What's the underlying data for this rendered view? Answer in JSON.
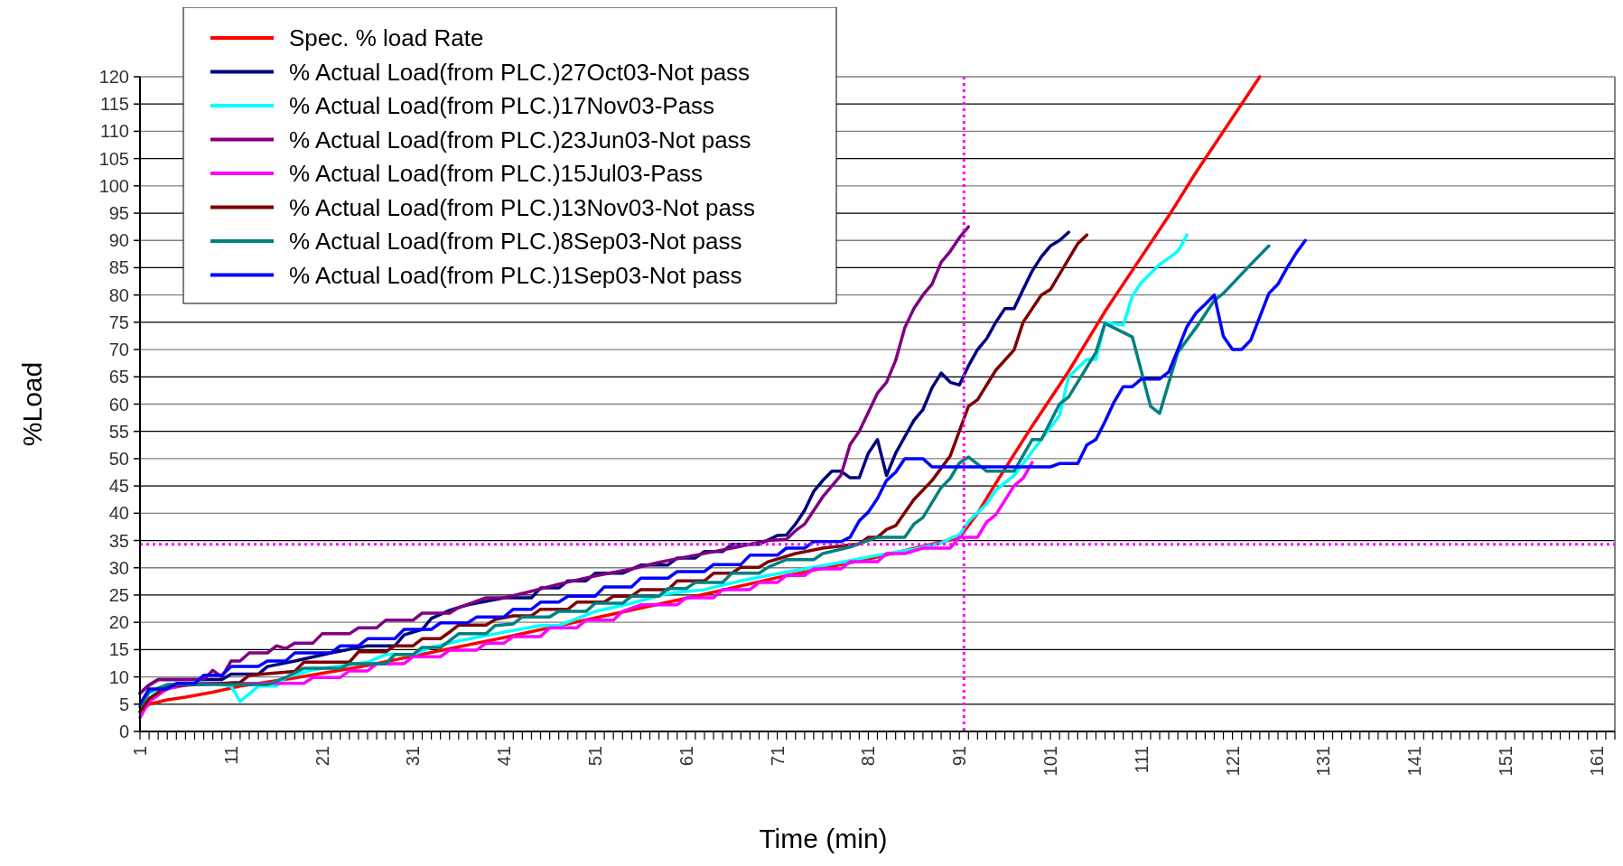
{
  "chart_data": {
    "type": "line",
    "xlabel": "Time (min)",
    "ylabel": "%Load",
    "legend": "top left",
    "grid": "y",
    "line_style": "solid",
    "xlim": [
      1,
      163
    ],
    "ylim": [
      0,
      120
    ],
    "yticks": [
      0,
      5,
      10,
      15,
      20,
      25,
      30,
      35,
      40,
      45,
      50,
      55,
      60,
      65,
      70,
      75,
      80,
      85,
      90,
      95,
      100,
      105,
      110,
      115,
      120
    ],
    "xticks": [
      1,
      {
        "value": 2,
        "label": null
      },
      {
        "value": 3,
        "label": null
      },
      {
        "value": 4,
        "label": null
      },
      {
        "value": 5,
        "label": null
      },
      {
        "value": 6,
        "label": null
      },
      {
        "value": 7,
        "label": null
      },
      {
        "value": 8,
        "label": null
      },
      {
        "value": 9,
        "label": null
      },
      {
        "value": 10,
        "label": null
      },
      11,
      {
        "value": 12,
        "label": null
      },
      {
        "value": 13,
        "label": null
      },
      {
        "value": 14,
        "label": null
      },
      {
        "value": 15,
        "label": null
      },
      {
        "value": 16,
        "label": null
      },
      {
        "value": 17,
        "label": null
      },
      {
        "value": 18,
        "label": null
      },
      {
        "value": 19,
        "label": null
      },
      {
        "value": 20,
        "label": null
      },
      21,
      {
        "value": 22,
        "label": null
      },
      {
        "value": 23,
        "label": null
      },
      {
        "value": 24,
        "label": null
      },
      {
        "value": 25,
        "label": null
      },
      {
        "value": 26,
        "label": null
      },
      {
        "value": 27,
        "label": null
      },
      {
        "value": 28,
        "label": null
      },
      {
        "value": 29,
        "label": null
      },
      {
        "value": 30,
        "label": null
      },
      31,
      {
        "value": 32,
        "label": null
      },
      {
        "value": 33,
        "label": null
      },
      {
        "value": 34,
        "label": null
      },
      {
        "value": 35,
        "label": null
      },
      {
        "value": 36,
        "label": null
      },
      {
        "value": 37,
        "label": null
      },
      {
        "value": 38,
        "label": null
      },
      {
        "value": 39,
        "label": null
      },
      {
        "value": 40,
        "label": null
      },
      41,
      {
        "value": 42,
        "label": null
      },
      {
        "value": 43,
        "label": null
      },
      {
        "value": 44,
        "label": null
      },
      {
        "value": 45,
        "label": null
      },
      {
        "value": 46,
        "label": null
      },
      {
        "value": 47,
        "label": null
      },
      {
        "value": 48,
        "label": null
      },
      {
        "value": 49,
        "label": null
      },
      {
        "value": 50,
        "label": null
      },
      51,
      {
        "value": 52,
        "label": null
      },
      {
        "value": 53,
        "label": null
      },
      {
        "value": 54,
        "label": null
      },
      {
        "value": 55,
        "label": null
      },
      {
        "value": 56,
        "label": null
      },
      {
        "value": 57,
        "label": null
      },
      {
        "value": 58,
        "label": null
      },
      {
        "value": 59,
        "label": null
      },
      {
        "value": 60,
        "label": null
      },
      61,
      {
        "value": 62,
        "label": null
      },
      {
        "value": 63,
        "label": null
      },
      {
        "value": 64,
        "label": null
      },
      {
        "value": 65,
        "label": null
      },
      {
        "value": 66,
        "label": null
      },
      {
        "value": 67,
        "label": null
      },
      {
        "value": 68,
        "label": null
      },
      {
        "value": 69,
        "label": null
      },
      {
        "value": 70,
        "label": null
      },
      71,
      {
        "value": 72,
        "label": null
      },
      {
        "value": 73,
        "label": null
      },
      {
        "value": 74,
        "label": null
      },
      {
        "value": 75,
        "label": null
      },
      {
        "value": 76,
        "label": null
      },
      {
        "value": 77,
        "label": null
      },
      {
        "value": 78,
        "label": null
      },
      {
        "value": 79,
        "label": null
      },
      {
        "value": 80,
        "label": null
      },
      81,
      {
        "value": 82,
        "label": null
      },
      {
        "value": 83,
        "label": null
      },
      {
        "value": 84,
        "label": null
      },
      {
        "value": 85,
        "label": null
      },
      {
        "value": 86,
        "label": null
      },
      {
        "value": 87,
        "label": null
      },
      {
        "value": 88,
        "label": null
      },
      {
        "value": 89,
        "label": null
      },
      {
        "value": 90,
        "label": null
      },
      91,
      {
        "value": 92,
        "label": null
      },
      {
        "value": 93,
        "label": null
      },
      {
        "value": 94,
        "label": null
      },
      {
        "value": 95,
        "label": null
      },
      {
        "value": 96,
        "label": null
      },
      {
        "value": 97,
        "label": null
      },
      {
        "value": 98,
        "label": null
      },
      {
        "value": 99,
        "label": null
      },
      {
        "value": 100,
        "label": null
      },
      101,
      {
        "value": 102,
        "label": null
      },
      {
        "value": 103,
        "label": null
      },
      {
        "value": 104,
        "label": null
      },
      {
        "value": 105,
        "label": null
      },
      {
        "value": 106,
        "label": null
      },
      {
        "value": 107,
        "label": null
      },
      {
        "value": 108,
        "label": null
      },
      {
        "value": 109,
        "label": null
      },
      {
        "value": 110,
        "label": null
      },
      111,
      {
        "value": 112,
        "label": null
      },
      {
        "value": 113,
        "label": null
      },
      {
        "value": 114,
        "label": null
      },
      {
        "value": 115,
        "label": null
      },
      {
        "value": 116,
        "label": null
      },
      {
        "value": 117,
        "label": null
      },
      {
        "value": 118,
        "label": null
      },
      {
        "value": 119,
        "label": null
      },
      {
        "value": 120,
        "label": null
      },
      121,
      {
        "value": 122,
        "label": null
      },
      {
        "value": 123,
        "label": null
      },
      {
        "value": 124,
        "label": null
      },
      {
        "value": 125,
        "label": null
      },
      {
        "value": 126,
        "label": null
      },
      {
        "value": 127,
        "label": null
      },
      {
        "value": 128,
        "label": null
      },
      {
        "value": 129,
        "label": null
      },
      {
        "value": 130,
        "label": null
      },
      131,
      {
        "value": 132,
        "label": null
      },
      {
        "value": 133,
        "label": null
      },
      {
        "value": 134,
        "label": null
      },
      {
        "value": 135,
        "label": null
      },
      {
        "value": 136,
        "label": null
      },
      {
        "value": 137,
        "label": null
      },
      {
        "value": 138,
        "label": null
      },
      {
        "value": 139,
        "label": null
      },
      {
        "value": 140,
        "label": null
      },
      141,
      {
        "value": 142,
        "label": null
      },
      {
        "value": 143,
        "label": null
      },
      {
        "value": 144,
        "label": null
      },
      {
        "value": 145,
        "label": null
      },
      {
        "value": 146,
        "label": null
      },
      {
        "value": 147,
        "label": null
      },
      {
        "value": 148,
        "label": null
      },
      {
        "value": 149,
        "label": null
      },
      {
        "value": 150,
        "label": null
      },
      151,
      {
        "value": 152,
        "label": null
      },
      {
        "value": 153,
        "label": null
      },
      {
        "value": 154,
        "label": null
      },
      {
        "value": 155,
        "label": null
      },
      {
        "value": 156,
        "label": null
      },
      {
        "value": 157,
        "label": null
      },
      {
        "value": 158,
        "label": null
      },
      {
        "value": 159,
        "label": null
      },
      {
        "value": 160,
        "label": null
      },
      161,
      {
        "value": 162,
        "label": null
      },
      {
        "value": 163,
        "label": null
      }
    ],
    "ref_lines": [
      {
        "axis": "x",
        "value": 91.5,
        "label": null,
        "color": "#ff00ff",
        "line_style": "dotted"
      },
      {
        "axis": "y",
        "value": 34.3,
        "label": null,
        "color": "#ff00ff",
        "line_style": "dotted"
      }
    ],
    "series": [
      {
        "name": "Spec. % load Rate",
        "color": "#ff0000",
        "x": [
          1,
          2,
          4,
          6,
          9,
          12,
          18,
          25,
          31,
          41,
          51,
          61,
          71,
          81,
          91,
          93,
          95,
          99,
          103,
          107,
          111,
          114,
          117,
          120,
          122,
          124
        ],
        "values": [
          3.6,
          5,
          5.8,
          6.3,
          7.2,
          8.3,
          9.8,
          11.8,
          13.8,
          17.2,
          20.8,
          24.4,
          28.2,
          31.6,
          35.5,
          40,
          45.5,
          56,
          66,
          77,
          87,
          94.5,
          102.5,
          110,
          115,
          120
        ]
      },
      {
        "name": "% Actual Load(from PLC.)27Oct03-Not pass",
        "color": "#000080",
        "x": [
          1,
          2,
          3,
          10,
          11,
          14,
          15,
          18,
          22,
          26,
          29,
          30,
          32,
          33,
          35,
          37,
          41,
          44,
          45,
          47,
          48,
          50,
          51,
          54,
          56,
          59,
          60,
          62,
          63,
          65,
          66,
          69,
          71,
          72,
          73,
          74,
          75,
          76,
          77,
          78,
          79,
          80,
          81,
          82,
          83,
          84,
          85,
          86,
          87,
          88,
          89,
          90,
          91,
          92,
          93,
          94,
          95,
          96,
          97,
          98,
          99,
          100,
          101,
          102,
          103
        ],
        "values": [
          7,
          8.5,
          9.5,
          9.5,
          10.5,
          10.5,
          11.9,
          12.9,
          14.4,
          15.7,
          15.7,
          17.7,
          18.7,
          20.7,
          22.2,
          23.2,
          24.5,
          24.5,
          26.3,
          26.3,
          27.6,
          27.6,
          29,
          29,
          30.5,
          30.5,
          31.8,
          31.8,
          33,
          33,
          34.3,
          34.3,
          35.9,
          36,
          38,
          40.5,
          44,
          46,
          47.7,
          47.7,
          46.5,
          46.5,
          51,
          53.5,
          46.9,
          51,
          54,
          57,
          59,
          63,
          65.7,
          64,
          63.5,
          67,
          70,
          72,
          75,
          77.5,
          77.5,
          81,
          84.4,
          87,
          89,
          90,
          91.5
        ]
      },
      {
        "name": "% Actual Load(from PLC.)17Nov03-Pass",
        "color": "#00ffff",
        "x": [
          1,
          2,
          4,
          8,
          11,
          12,
          14,
          16,
          17,
          20,
          23,
          26,
          28,
          31,
          33,
          36,
          40,
          45,
          47,
          51,
          55,
          59,
          63,
          67,
          70,
          74,
          78,
          82,
          86,
          89,
          90,
          91,
          92,
          94,
          95,
          97,
          99,
          102,
          103,
          105,
          106,
          107,
          109,
          110,
          111,
          113,
          115,
          116
        ],
        "values": [
          4.5,
          7,
          8.5,
          9,
          8.3,
          5.5,
          8.3,
          8.3,
          9.9,
          11.3,
          12,
          12.7,
          14.1,
          14.1,
          15.4,
          16.6,
          17.9,
          19.4,
          19.4,
          22,
          23.5,
          25.3,
          26,
          27.6,
          28.6,
          29.8,
          31,
          32.3,
          33.4,
          34.5,
          35.4,
          36,
          38.5,
          41.7,
          44.2,
          46.9,
          51.3,
          57.9,
          65,
          68.2,
          68.2,
          75,
          74.5,
          79.8,
          82.3,
          85.6,
          88,
          91
        ]
      },
      {
        "name": "% Actual Load(from PLC.)23Jun03-Not pass",
        "color": "#800080",
        "x": [
          1,
          2,
          3,
          8,
          9,
          10,
          11,
          12,
          13,
          15,
          16,
          17,
          18,
          20,
          21,
          24,
          25,
          27,
          28,
          31,
          32,
          35,
          36,
          39,
          41,
          44,
          47,
          51,
          55,
          58,
          62,
          66,
          70,
          72,
          73,
          74,
          76,
          78,
          79,
          80,
          82,
          83,
          84,
          85,
          86,
          87,
          88,
          89,
          90,
          91,
          92
        ],
        "values": [
          7,
          8.5,
          9.5,
          9.5,
          11.2,
          10,
          12.9,
          12.9,
          14.4,
          14.4,
          15.7,
          15.2,
          16.2,
          16.2,
          17.9,
          17.9,
          19,
          19,
          20.4,
          20.4,
          21.7,
          21.7,
          22.7,
          24.5,
          24.5,
          25.7,
          27,
          28.5,
          29.8,
          31,
          32.3,
          33.6,
          35,
          35.2,
          36.8,
          38,
          43,
          47,
          52.6,
          55,
          62,
          64,
          68,
          74,
          77.5,
          80,
          82,
          86,
          88,
          90.5,
          92.5
        ]
      },
      {
        "name": "% Actual Load(from PLC.)15Jul03-Pass",
        "color": "#ff00ff",
        "x": [
          1,
          2,
          4,
          7,
          19,
          20,
          23,
          24,
          26,
          27,
          30,
          31,
          34,
          35,
          38,
          39,
          41,
          42,
          45,
          46,
          49,
          50,
          53,
          54,
          56,
          60,
          61,
          64,
          65,
          68,
          69,
          71,
          72,
          74,
          75,
          78,
          79,
          82,
          83,
          85,
          87,
          90,
          91,
          93,
          94,
          95,
          97,
          98,
          99
        ],
        "values": [
          2.5,
          5.5,
          7.8,
          8.8,
          8.8,
          9.9,
          9.9,
          11.1,
          11.1,
          12.4,
          12.4,
          13.7,
          13.7,
          14.9,
          14.9,
          16.2,
          16.2,
          17.4,
          17.4,
          19,
          19,
          20.4,
          20.4,
          22,
          23.2,
          23.2,
          24.5,
          24.5,
          26,
          26,
          27.3,
          27.3,
          28.6,
          28.6,
          29.8,
          29.8,
          31.1,
          31.1,
          32.6,
          32.6,
          33.6,
          33.6,
          35.6,
          35.6,
          38.4,
          39.7,
          45,
          46.4,
          49.3
        ]
      },
      {
        "name": "% Actual Load(from PLC.)13Nov03-Not pass",
        "color": "#800000",
        "x": [
          1,
          2,
          4,
          12,
          13,
          18,
          19,
          24,
          25,
          28,
          29,
          31,
          32,
          34,
          35,
          36,
          39,
          40,
          42,
          44,
          45,
          48,
          49,
          52,
          53,
          55,
          56,
          59,
          60,
          63,
          64,
          66,
          67,
          69,
          70,
          73,
          76,
          80,
          81,
          82,
          83,
          84,
          86,
          88,
          90,
          92,
          93,
          95,
          97,
          98,
          100,
          101,
          104,
          105
        ],
        "values": [
          3.6,
          6,
          8.3,
          9,
          10.3,
          11,
          12.7,
          12.7,
          14.6,
          14.6,
          15.7,
          15.7,
          17,
          17,
          18.2,
          19.5,
          19.5,
          20.5,
          21.2,
          21.2,
          22.4,
          22.4,
          23.7,
          23.7,
          24.8,
          24.8,
          26,
          26,
          27.6,
          27.6,
          29,
          29,
          30.1,
          30.1,
          31.1,
          32.6,
          33.6,
          34.4,
          35.6,
          35.6,
          37,
          37.7,
          42.5,
          46,
          50.5,
          59.6,
          60.8,
          66.2,
          69.9,
          75,
          80,
          81,
          89.4,
          91
        ]
      },
      {
        "name": "% Actual Load(from PLC.)8Sep03-Not pass",
        "color": "#008080",
        "x": [
          1,
          2,
          4,
          15,
          17,
          19,
          23,
          24,
          28,
          29,
          31,
          32,
          34,
          35,
          36,
          39,
          40,
          42,
          43,
          46,
          47,
          50,
          51,
          54,
          55,
          58,
          59,
          61,
          62,
          65,
          66,
          69,
          70,
          72,
          75,
          76,
          79,
          82,
          85,
          86,
          87,
          89,
          90,
          91,
          92,
          94,
          97,
          99,
          100,
          102,
          103,
          106,
          107,
          110,
          112,
          113,
          115,
          117,
          119,
          120,
          123,
          125
        ],
        "values": [
          4.5,
          7.3,
          8.6,
          8.6,
          9.9,
          11.6,
          11.6,
          12.4,
          12.4,
          14.1,
          14.1,
          15.4,
          15.4,
          16.6,
          17.9,
          17.9,
          19.4,
          19.7,
          21,
          21,
          22,
          22,
          23.5,
          23.5,
          24.8,
          24.8,
          26.2,
          26.2,
          27.3,
          27.3,
          29,
          29,
          30.1,
          31.5,
          31.5,
          32.6,
          33.8,
          35.6,
          35.6,
          38,
          39.2,
          44.7,
          46.4,
          49.2,
          50.3,
          47.7,
          47.7,
          53.5,
          53.5,
          60,
          61.3,
          69.5,
          74.8,
          72.3,
          59.6,
          58.3,
          69.5,
          74,
          79,
          80.3,
          85.6,
          89
        ]
      },
      {
        "name": "% Actual Load(from PLC.)1Sep03-Not pass",
        "color": "#0000ff",
        "x": [
          1,
          2,
          4,
          5,
          7,
          8,
          10,
          11,
          14,
          15,
          17,
          18,
          22,
          23,
          25,
          26,
          29,
          30,
          33,
          34,
          37,
          38,
          41,
          42,
          44,
          45,
          47,
          48,
          51,
          52,
          55,
          56,
          59,
          60,
          63,
          64,
          67,
          68,
          71,
          72,
          74,
          75,
          78,
          79,
          80,
          81,
          82,
          83,
          84,
          85,
          87,
          88,
          101,
          102,
          104,
          105,
          106,
          107,
          108,
          109,
          110,
          111,
          113,
          114,
          115,
          116,
          117,
          118,
          119,
          120,
          121,
          122,
          123,
          125,
          126,
          127,
          128,
          129
        ],
        "values": [
          5,
          7.8,
          7.8,
          8.8,
          8.8,
          10.3,
          10.3,
          11.9,
          11.9,
          12.9,
          12.9,
          14.4,
          14.4,
          15.7,
          15.7,
          17,
          17,
          18.7,
          18.7,
          19.9,
          19.9,
          21,
          21,
          22.4,
          22.4,
          23.7,
          23.7,
          24.8,
          24.8,
          26.5,
          26.5,
          28.1,
          28.1,
          29.3,
          29.3,
          30.6,
          30.6,
          32.3,
          32.3,
          33.6,
          33.6,
          34.8,
          34.8,
          35.6,
          38.6,
          40.2,
          42.7,
          46,
          47.5,
          50,
          50,
          48.5,
          48.5,
          49.1,
          49.1,
          52.5,
          53.5,
          56.8,
          60.4,
          63.2,
          63.2,
          64.6,
          64.6,
          65.9,
          70,
          74.2,
          76.7,
          78.3,
          80,
          72.4,
          70,
          70,
          71.7,
          80.3,
          82,
          85,
          87.7,
          90
        ]
      }
    ]
  }
}
